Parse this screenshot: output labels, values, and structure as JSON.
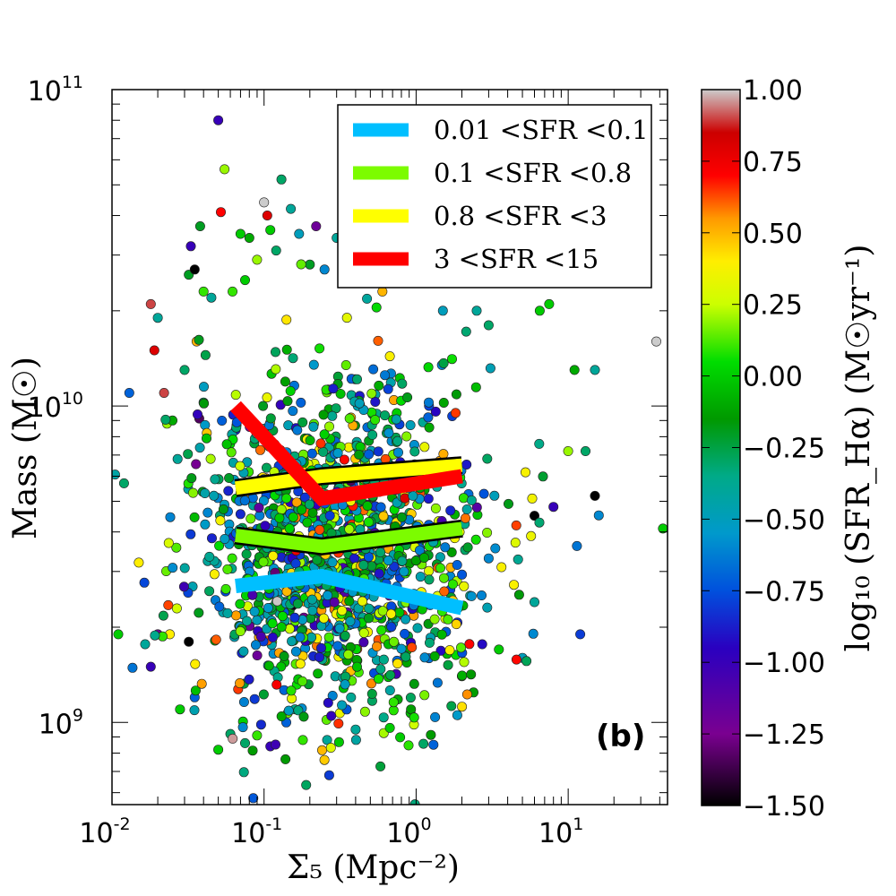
{
  "chart_data": {
    "type": "scatter",
    "panel_label": "(b)",
    "xlabel": "Σ₅ (Mpc⁻²)",
    "ylabel": "Mass (M☉)",
    "xscale": "log",
    "yscale": "log",
    "xlim": [
      0.01,
      45
    ],
    "ylim": [
      550000000.0,
      100000000000.0
    ],
    "x_ticks": [
      {
        "value": 0.01,
        "base": "10",
        "exp": "-2"
      },
      {
        "value": 0.1,
        "base": "10",
        "exp": "-1"
      },
      {
        "value": 1,
        "base": "10",
        "exp": "0"
      },
      {
        "value": 10,
        "base": "10",
        "exp": "1"
      }
    ],
    "y_ticks": [
      {
        "value": 1000000000.0,
        "base": "10",
        "exp": "9"
      },
      {
        "value": 10000000000.0,
        "base": "10",
        "exp": "10"
      },
      {
        "value": 100000000000.0,
        "base": "10",
        "exp": "11"
      }
    ],
    "colorbar": {
      "label": "log₁₀ (SFR_Hα)   (M☉yr⁻¹)",
      "range": [
        -1.5,
        1.0
      ],
      "ticks": [
        "1.00",
        "0.75",
        "0.50",
        "0.25",
        "0.00",
        "−0.25",
        "−0.50",
        "−0.75",
        "−1.00",
        "−1.25",
        "−1.50"
      ],
      "tick_values": [
        1.0,
        0.75,
        0.5,
        0.25,
        0.0,
        -0.25,
        -0.5,
        -0.75,
        -1.0,
        -1.25,
        -1.5
      ],
      "colormap": "nipy_spectral"
    },
    "series": [
      {
        "name": "0.01 <SFR <0.1",
        "color": "#00bfff",
        "x": [
          0.065,
          0.24,
          2.0
        ],
        "y": [
          2700000000.0,
          2900000000.0,
          2300000000.0
        ]
      },
      {
        "name": "0.1 <SFR <0.8",
        "color": "#7cfc00",
        "x": [
          0.065,
          0.24,
          2.0
        ],
        "y": [
          3900000000.0,
          3600000000.0,
          4100000000.0
        ]
      },
      {
        "name": "0.8 <SFR <3",
        "color": "#ffff00",
        "x": [
          0.065,
          0.24,
          2.0
        ],
        "y": [
          5500000000.0,
          6000000000.0,
          6500000000.0
        ]
      },
      {
        "name": "3 <SFR <15",
        "color": "#ff0000",
        "x": [
          0.065,
          0.24,
          2.0
        ],
        "y": [
          10000000000.0,
          5100000000.0,
          6000000000.0
        ]
      }
    ],
    "scatter_note": "Roughly 1500 galaxies colored by log10 SFR(Halpha); points concentrated at Sigma5 0.03-3 Mpc^-2 and mass 1e9-3e10 Msun",
    "scatter_points": [
      [
        0.012,
        5700000000.0,
        -0.3
      ],
      [
        0.013,
        11000000000.0,
        -0.7
      ],
      [
        0.018,
        21000000000.0,
        0.9
      ],
      [
        0.019,
        15000000000.0,
        0.8
      ],
      [
        0.02,
        19000000000.0,
        -0.4
      ],
      [
        0.022,
        11000000000.0,
        0.9
      ],
      [
        0.023,
        8800000000.0,
        0.2
      ],
      [
        0.025,
        9000000000.0,
        -0.1
      ],
      [
        0.027,
        6800000000.0,
        -0.4
      ],
      [
        0.03,
        13000000000.0,
        -0.3
      ],
      [
        0.032,
        26000000000.0,
        -0.2
      ],
      [
        0.033,
        32000000000.0,
        -1.0
      ],
      [
        0.035,
        27000000000.0,
        -1.5
      ],
      [
        0.036,
        16000000000.0,
        0.5
      ],
      [
        0.038,
        37000000000.0,
        -0.2
      ],
      [
        0.04,
        23000000000.0,
        0.1
      ],
      [
        0.045,
        22000000000.0,
        -0.4
      ],
      [
        0.05,
        80000000000.0,
        -1.0
      ],
      [
        0.052,
        41000000000.0,
        0.7
      ],
      [
        0.055,
        56000000000.0,
        0.2
      ],
      [
        0.062,
        23000000000.0,
        0.1
      ],
      [
        0.07,
        35000000000.0,
        0.0
      ],
      [
        0.075,
        25000000000.0,
        0.0
      ],
      [
        0.08,
        34000000000.0,
        -0.1
      ],
      [
        0.09,
        29000000000.0,
        0.2
      ],
      [
        0.1,
        44000000000.0,
        1.0
      ],
      [
        0.105,
        40000000000.0,
        0.8
      ],
      [
        0.11,
        36000000000.0,
        0.0
      ],
      [
        0.12,
        31000000000.0,
        -0.3
      ],
      [
        0.13,
        52000000000.0,
        -0.3
      ],
      [
        0.15,
        42000000000.0,
        -0.4
      ],
      [
        0.17,
        35000000000.0,
        -0.5
      ],
      [
        0.2,
        28000000000.0,
        -0.2
      ],
      [
        0.22,
        37000000000.0,
        -1.2
      ],
      [
        0.25,
        27000000000.0,
        -0.6
      ],
      [
        0.3,
        34000000000.0,
        -0.4
      ],
      [
        0.35,
        32000000000.0,
        0.3
      ],
      [
        0.4,
        25000000000.0,
        0.1
      ],
      [
        0.5,
        30000000000.0,
        -0.3
      ],
      [
        0.6,
        23000000000.0,
        0.5
      ],
      [
        1.5,
        20000000000.0,
        -0.5
      ],
      [
        2.5,
        20000000000.0,
        -0.4
      ],
      [
        3.0,
        18000000000.0,
        -0.3
      ],
      [
        5.0,
        25000000000.0,
        0.3
      ],
      [
        6.5,
        20000000000.0,
        0.0
      ],
      [
        7.5,
        21000000000.0,
        0.0
      ],
      [
        11.0,
        13000000000.0,
        -0.1
      ],
      [
        15.0,
        13000000000.0,
        -0.4
      ],
      [
        38.0,
        16000000000.0,
        1.0
      ],
      [
        42.0,
        4100000000.0,
        0.0
      ],
      [
        0.011,
        1900000000.0,
        0.0
      ],
      [
        0.015,
        3200000000.0,
        0.4
      ],
      [
        0.018,
        1500000000.0,
        -1.0
      ],
      [
        0.02,
        1900000000.0,
        -1.2
      ],
      [
        0.024,
        1900000000.0,
        0.4
      ],
      [
        0.028,
        1100000000.0,
        0.0
      ],
      [
        0.032,
        1800000000.0,
        -1.5
      ],
      [
        0.035,
        1200000000.0,
        -0.7
      ],
      [
        0.05,
        820000000.0,
        0.0
      ],
      [
        0.06,
        920000000.0,
        -0.3
      ],
      [
        0.075,
        860000000.0,
        -0.3
      ],
      [
        0.09,
        910000000.0,
        0.1
      ],
      [
        0.11,
        840000000.0,
        -1.0
      ],
      [
        0.14,
        1000000000.0,
        -0.7
      ],
      [
        0.18,
        880000000.0,
        0.1
      ],
      [
        0.26,
        880000000.0,
        -0.4
      ],
      [
        0.4,
        950000000.0,
        -0.4
      ],
      [
        1.3,
        850000000.0,
        -0.7
      ],
      [
        2.0,
        1400000000.0,
        0.1
      ],
      [
        3.5,
        1700000000.0,
        0.0
      ],
      [
        5.0,
        1600000000.0,
        -0.5
      ],
      [
        6.0,
        2400000000.0,
        -0.4
      ],
      [
        8.0,
        4800000000.0,
        -1.0
      ],
      [
        12.0,
        1900000000.0,
        -0.8
      ],
      [
        15.0,
        5200000000.0,
        -1.5
      ],
      [
        10.0,
        7200000000.0,
        0.2
      ],
      [
        13.0,
        7200000000.0,
        -0.3
      ],
      [
        6.0,
        4500000000.0,
        -1.5
      ],
      [
        4.5,
        3700000000.0,
        0.3
      ],
      [
        3.0,
        3300000000.0,
        -0.6
      ]
    ],
    "scatter_random_seed": 7
  }
}
